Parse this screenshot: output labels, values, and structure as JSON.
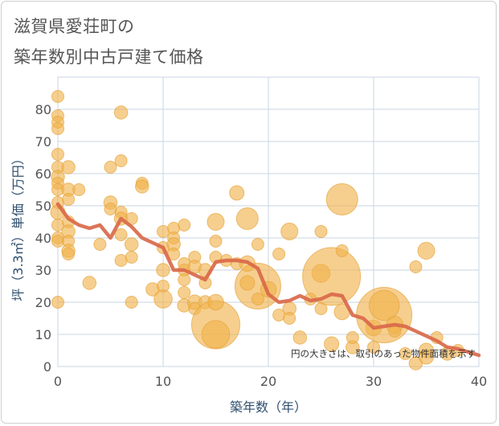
{
  "title": {
    "line1": "滋賀県愛荘町の",
    "line2": "築年数別中古戸建て価格"
  },
  "note": "円の大きさは、取引のあった物件面積を示す",
  "colors": {
    "bubble": "#f0b24a",
    "bubble_stroke": "#e6a43a",
    "line": "#d9694a",
    "grid": "#c9d6e3",
    "axis_title": "#2f4f6f"
  },
  "chart_data": {
    "type": "scatter",
    "xlabel": "築年数（年）",
    "ylabel": "坪（3.3㎡）単価（万円）",
    "xlim": [
      0,
      40
    ],
    "ylim": [
      0,
      90
    ],
    "xticks": [
      "0",
      "10",
      "20",
      "30",
      "40"
    ],
    "yticks": [
      "0",
      "10",
      "20",
      "30",
      "40",
      "50",
      "60",
      "70",
      "80"
    ],
    "grid": true,
    "bubbles": [
      {
        "x": 0,
        "y": 84,
        "s": 1
      },
      {
        "x": 0,
        "y": 78,
        "s": 1
      },
      {
        "x": 0,
        "y": 76,
        "s": 1
      },
      {
        "x": 0,
        "y": 74,
        "s": 1
      },
      {
        "x": 0,
        "y": 66,
        "s": 1
      },
      {
        "x": 0,
        "y": 62,
        "s": 1
      },
      {
        "x": 0,
        "y": 59,
        "s": 1.1
      },
      {
        "x": 0,
        "y": 57,
        "s": 1
      },
      {
        "x": 0,
        "y": 55,
        "s": 1
      },
      {
        "x": 0,
        "y": 51,
        "s": 1
      },
      {
        "x": 0,
        "y": 48,
        "s": 1.2
      },
      {
        "x": 0,
        "y": 44,
        "s": 1
      },
      {
        "x": 0,
        "y": 40,
        "s": 1
      },
      {
        "x": 0,
        "y": 39,
        "s": 1
      },
      {
        "x": 0,
        "y": 20,
        "s": 1
      },
      {
        "x": 1,
        "y": 62,
        "s": 1.1
      },
      {
        "x": 1,
        "y": 55,
        "s": 1.1
      },
      {
        "x": 1,
        "y": 52,
        "s": 1
      },
      {
        "x": 1,
        "y": 45,
        "s": 1
      },
      {
        "x": 1,
        "y": 42,
        "s": 1.1
      },
      {
        "x": 1,
        "y": 39,
        "s": 1
      },
      {
        "x": 1,
        "y": 36,
        "s": 1.1
      },
      {
        "x": 1,
        "y": 35,
        "s": 1
      },
      {
        "x": 2,
        "y": 55,
        "s": 1
      },
      {
        "x": 3,
        "y": 26,
        "s": 1.1
      },
      {
        "x": 4,
        "y": 38,
        "s": 1
      },
      {
        "x": 5,
        "y": 62,
        "s": 1
      },
      {
        "x": 5,
        "y": 51,
        "s": 1.1
      },
      {
        "x": 5,
        "y": 49,
        "s": 1
      },
      {
        "x": 6,
        "y": 79,
        "s": 1.1
      },
      {
        "x": 6,
        "y": 64,
        "s": 1
      },
      {
        "x": 6,
        "y": 48,
        "s": 1
      },
      {
        "x": 6,
        "y": 46,
        "s": 1.1
      },
      {
        "x": 6,
        "y": 41,
        "s": 1
      },
      {
        "x": 6,
        "y": 33,
        "s": 1
      },
      {
        "x": 7,
        "y": 46,
        "s": 1
      },
      {
        "x": 7,
        "y": 38,
        "s": 1.1
      },
      {
        "x": 7,
        "y": 34,
        "s": 1
      },
      {
        "x": 7,
        "y": 20,
        "s": 1
      },
      {
        "x": 8,
        "y": 57,
        "s": 1
      },
      {
        "x": 8,
        "y": 56,
        "s": 1.1
      },
      {
        "x": 9,
        "y": 24,
        "s": 1.1
      },
      {
        "x": 10,
        "y": 42,
        "s": 1
      },
      {
        "x": 10,
        "y": 37,
        "s": 1
      },
      {
        "x": 10,
        "y": 30,
        "s": 1.1
      },
      {
        "x": 10,
        "y": 25,
        "s": 1
      },
      {
        "x": 10,
        "y": 21,
        "s": 1.5
      },
      {
        "x": 11,
        "y": 43,
        "s": 1
      },
      {
        "x": 11,
        "y": 40,
        "s": 1
      },
      {
        "x": 11,
        "y": 38,
        "s": 1.1
      },
      {
        "x": 11,
        "y": 35,
        "s": 1
      },
      {
        "x": 12,
        "y": 44,
        "s": 1
      },
      {
        "x": 12,
        "y": 32,
        "s": 1
      },
      {
        "x": 12,
        "y": 30,
        "s": 1
      },
      {
        "x": 12,
        "y": 27,
        "s": 1
      },
      {
        "x": 12,
        "y": 23,
        "s": 1
      },
      {
        "x": 12,
        "y": 19,
        "s": 1.1
      },
      {
        "x": 13,
        "y": 34,
        "s": 1
      },
      {
        "x": 13,
        "y": 31,
        "s": 1.1
      },
      {
        "x": 13,
        "y": 20,
        "s": 1.2
      },
      {
        "x": 13,
        "y": 18,
        "s": 1
      },
      {
        "x": 14,
        "y": 30,
        "s": 1.1
      },
      {
        "x": 14,
        "y": 26,
        "s": 1
      },
      {
        "x": 14,
        "y": 20,
        "s": 1.1
      },
      {
        "x": 15,
        "y": 45,
        "s": 1.4
      },
      {
        "x": 15,
        "y": 39,
        "s": 1
      },
      {
        "x": 15,
        "y": 34,
        "s": 1
      },
      {
        "x": 15,
        "y": 13,
        "s": 4.0
      },
      {
        "x": 15,
        "y": 10,
        "s": 2.3
      },
      {
        "x": 15,
        "y": 20,
        "s": 1.3
      },
      {
        "x": 16,
        "y": 33,
        "s": 1
      },
      {
        "x": 17,
        "y": 54,
        "s": 1.2
      },
      {
        "x": 17,
        "y": 32,
        "s": 1
      },
      {
        "x": 18,
        "y": 46,
        "s": 1.8
      },
      {
        "x": 18,
        "y": 32,
        "s": 1.3
      },
      {
        "x": 19,
        "y": 25,
        "s": 3.8
      },
      {
        "x": 19,
        "y": 38,
        "s": 1
      },
      {
        "x": 19,
        "y": 21,
        "s": 1
      },
      {
        "x": 18,
        "y": 26,
        "s": 1.2
      },
      {
        "x": 20,
        "y": 24,
        "s": 1.3
      },
      {
        "x": 21,
        "y": 35,
        "s": 1
      },
      {
        "x": 21,
        "y": 16,
        "s": 1
      },
      {
        "x": 22,
        "y": 42,
        "s": 1.4
      },
      {
        "x": 22,
        "y": 18,
        "s": 1.1
      },
      {
        "x": 22,
        "y": 15,
        "s": 1
      },
      {
        "x": 23,
        "y": 9,
        "s": 1.1
      },
      {
        "x": 24,
        "y": 21,
        "s": 1
      },
      {
        "x": 25,
        "y": 42,
        "s": 1
      },
      {
        "x": 25,
        "y": 29,
        "s": 1.5
      },
      {
        "x": 25,
        "y": 18,
        "s": 1
      },
      {
        "x": 26,
        "y": 28,
        "s": 4.8
      },
      {
        "x": 26,
        "y": 7,
        "s": 1.2
      },
      {
        "x": 27,
        "y": 52,
        "s": 2.6
      },
      {
        "x": 27,
        "y": 36,
        "s": 1
      },
      {
        "x": 27,
        "y": 17,
        "s": 1.3
      },
      {
        "x": 28,
        "y": 6,
        "s": 1.1
      },
      {
        "x": 28,
        "y": 9,
        "s": 1
      },
      {
        "x": 30,
        "y": 12,
        "s": 1.3
      },
      {
        "x": 30,
        "y": 6,
        "s": 1
      },
      {
        "x": 31,
        "y": 16,
        "s": 4.6
      },
      {
        "x": 31,
        "y": 19,
        "s": 2.5
      },
      {
        "x": 32,
        "y": 13,
        "s": 1.4
      },
      {
        "x": 32,
        "y": 11,
        "s": 1
      },
      {
        "x": 33,
        "y": 4,
        "s": 1
      },
      {
        "x": 34,
        "y": 31,
        "s": 1
      },
      {
        "x": 34,
        "y": 1,
        "s": 1.1
      },
      {
        "x": 35,
        "y": 36,
        "s": 1.4
      },
      {
        "x": 35,
        "y": 5,
        "s": 1.2
      },
      {
        "x": 35,
        "y": 3,
        "s": 1.2
      },
      {
        "x": 36,
        "y": 9,
        "s": 1
      },
      {
        "x": 37,
        "y": 4,
        "s": 1.1
      },
      {
        "x": 38,
        "y": 5,
        "s": 1
      }
    ],
    "series": [
      {
        "x": [
          0,
          1,
          2,
          3,
          4,
          5,
          6,
          7,
          8,
          9,
          10,
          11,
          12,
          13,
          14,
          15,
          16,
          17,
          18,
          19,
          20,
          21,
          22,
          23,
          24,
          25,
          26,
          27,
          28,
          29,
          30,
          31,
          32,
          33,
          34,
          35,
          36,
          37,
          38,
          39,
          40
        ],
        "values": [
          50.5,
          46,
          44,
          43,
          44,
          40,
          46,
          43.5,
          40,
          38.5,
          37,
          30,
          30,
          28.5,
          27,
          32.5,
          33,
          33,
          32.5,
          30.5,
          22.5,
          20,
          20.5,
          22,
          20.5,
          21,
          22.5,
          22,
          16,
          15,
          12,
          12.5,
          13,
          12.5,
          11,
          9.5,
          8,
          6,
          5.5,
          4.5,
          3.5
        ]
      }
    ]
  }
}
